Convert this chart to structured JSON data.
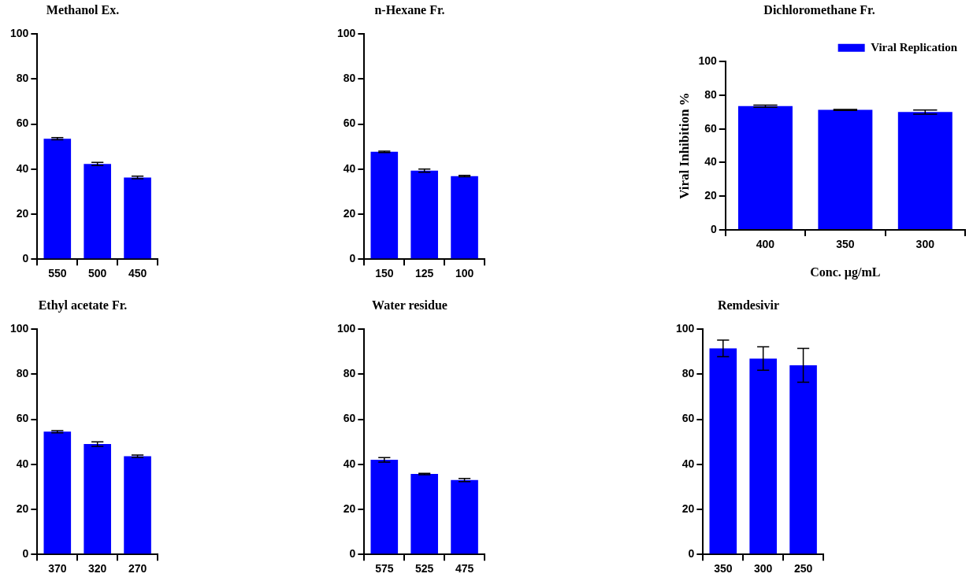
{
  "chart_data": [
    {
      "type": "bar",
      "title": "Methanol Ex.",
      "categories": [
        "550",
        "500",
        "450"
      ],
      "ylim": [
        0,
        100
      ],
      "yticks": [
        0,
        20,
        40,
        60,
        80,
        100
      ],
      "series": [
        {
          "color": "#0000ff",
          "values": [
            53.5,
            42.3,
            36.3
          ],
          "errors": [
            0.5,
            0.7,
            0.6
          ]
        }
      ]
    },
    {
      "type": "bar",
      "title": "n-Hexane Fr.",
      "categories": [
        "150",
        "125",
        "100"
      ],
      "ylim": [
        0,
        100
      ],
      "yticks": [
        0,
        20,
        40,
        60,
        80,
        100
      ],
      "series": [
        {
          "color": "#0000ff",
          "values": [
            47.7,
            39.3,
            36.9
          ],
          "errors": [
            0.3,
            0.7,
            0.3
          ]
        }
      ]
    },
    {
      "type": "bar",
      "title": "Dichloromethane Fr.",
      "xlabel": "Conc. µg/mL",
      "ylabel": "Viral Inhibition %",
      "legend": "top right",
      "categories": [
        "400",
        "350",
        "300"
      ],
      "ylim": [
        0,
        100
      ],
      "yticks": [
        0,
        20,
        40,
        60,
        80,
        100
      ],
      "series": [
        {
          "name": "Viral Replication",
          "color": "#0000ff",
          "values": [
            73.5,
            71.3,
            70.0
          ],
          "errors": [
            0.6,
            0.3,
            1.2
          ]
        }
      ]
    },
    {
      "type": "bar",
      "title": "Ethyl acetate Fr.",
      "categories": [
        "370",
        "320",
        "270"
      ],
      "ylim": [
        0,
        100
      ],
      "yticks": [
        0,
        20,
        40,
        60,
        80,
        100
      ],
      "series": [
        {
          "color": "#0000ff",
          "values": [
            54.5,
            49.0,
            43.6
          ],
          "errors": [
            0.5,
            1.0,
            0.5
          ]
        }
      ]
    },
    {
      "type": "bar",
      "title": "Water residue",
      "categories": [
        "575",
        "525",
        "475"
      ],
      "ylim": [
        0,
        100
      ],
      "yticks": [
        0,
        20,
        40,
        60,
        80,
        100
      ],
      "series": [
        {
          "color": "#0000ff",
          "values": [
            42.0,
            35.7,
            33.0
          ],
          "errors": [
            1.0,
            0.3,
            0.7
          ]
        }
      ]
    },
    {
      "type": "bar",
      "title": "Remdesivir",
      "categories": [
        "350",
        "300",
        "250"
      ],
      "ylim": [
        0,
        100
      ],
      "yticks": [
        0,
        20,
        40,
        60,
        80,
        100
      ],
      "series": [
        {
          "color": "#0000ff",
          "values": [
            91.5,
            87.0,
            84.0
          ],
          "errors": [
            3.7,
            5.2,
            7.5
          ]
        }
      ]
    }
  ]
}
